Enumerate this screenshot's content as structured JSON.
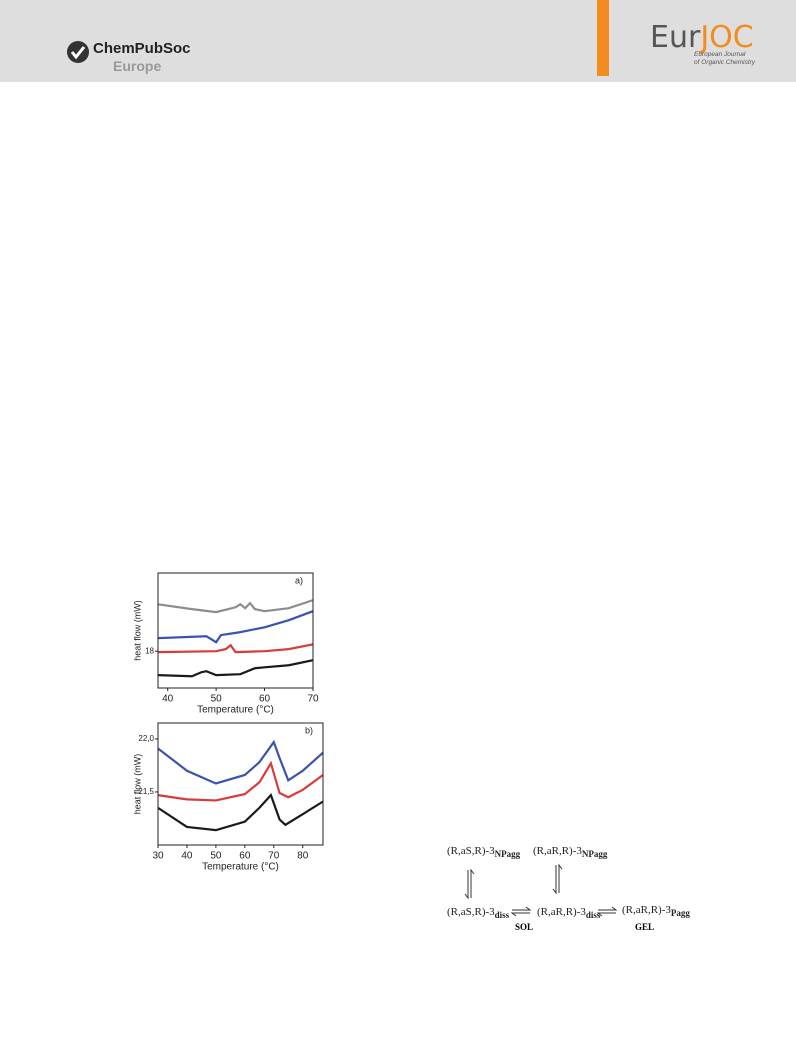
{
  "header": {
    "publisher": "ChemPubSoc",
    "region": "Europe",
    "journal_a": "Eur",
    "journal_b": "JOC",
    "journal_line1": "European Journal",
    "journal_line2": "of Organic Chemistry"
  },
  "chart_data": [
    {
      "type": "line",
      "panel": "a)",
      "xlabel": "Temperature (°C)",
      "ylabel": "heat flow (mW)",
      "xlim": [
        38,
        70
      ],
      "xticks": [
        40,
        50,
        60,
        70
      ],
      "ylim": [
        16.4,
        21.4
      ],
      "yticks": [
        18
      ],
      "series": [
        {
          "color": "#8c8c8c",
          "x": [
            38,
            45,
            50,
            54,
            55,
            56,
            57,
            58,
            60,
            65,
            70
          ],
          "values": [
            20.04,
            19.83,
            19.7,
            19.91,
            20.04,
            19.87,
            20.09,
            19.83,
            19.74,
            19.87,
            20.22
          ]
        },
        {
          "color": "#3a53b0",
          "x": [
            38,
            48,
            50,
            51,
            55,
            60,
            65,
            70
          ],
          "values": [
            18.57,
            18.65,
            18.39,
            18.7,
            18.83,
            19.04,
            19.35,
            19.74
          ]
        },
        {
          "color": "#d93a3a",
          "x": [
            38,
            50,
            52,
            53,
            54,
            60,
            65,
            70
          ],
          "values": [
            17.96,
            18.0,
            18.09,
            18.26,
            17.96,
            18.0,
            18.09,
            18.3
          ]
        },
        {
          "color": "#1a1a1a",
          "x": [
            38,
            45,
            47,
            48,
            50,
            55,
            58,
            60,
            65,
            70
          ],
          "values": [
            16.96,
            16.91,
            17.09,
            17.13,
            16.96,
            17.0,
            17.26,
            17.3,
            17.39,
            17.61
          ]
        }
      ]
    },
    {
      "type": "line",
      "panel": "b)",
      "xlabel": "Temperature (°C)",
      "ylabel": "heat flow (mW)",
      "xlim": [
        30,
        87
      ],
      "xticks": [
        30,
        40,
        50,
        60,
        70,
        80
      ],
      "ylim": [
        21.0,
        22.15
      ],
      "yticks": [
        {
          "value": 21.5,
          "label": "21,5"
        },
        {
          "value": 22.0,
          "label": "22,0"
        }
      ],
      "series": [
        {
          "color": "#3a53b0",
          "x": [
            30,
            40,
            50,
            60,
            65,
            70,
            72,
            75,
            80,
            87
          ],
          "values": [
            21.91,
            21.7,
            21.58,
            21.66,
            21.78,
            21.97,
            21.82,
            21.61,
            21.7,
            21.87
          ]
        },
        {
          "color": "#d93a3a",
          "x": [
            30,
            40,
            50,
            60,
            65,
            69,
            72,
            75,
            80,
            87
          ],
          "values": [
            21.47,
            21.43,
            21.42,
            21.48,
            21.59,
            21.77,
            21.49,
            21.45,
            21.52,
            21.66
          ]
        },
        {
          "color": "#1a1a1a",
          "x": [
            30,
            40,
            50,
            60,
            65,
            69,
            72,
            74,
            80,
            87
          ],
          "values": [
            21.35,
            21.17,
            21.14,
            21.22,
            21.35,
            21.47,
            21.24,
            21.19,
            21.29,
            21.41
          ]
        }
      ]
    }
  ],
  "scheme": {
    "np_aS": {
      "main": "(R,aS,R)-3",
      "sub": "NPagg"
    },
    "np_aR": {
      "main": "(R,aR,R)-3",
      "sub": "NPagg"
    },
    "diss_aS": {
      "main": "(R,aS,R)-3",
      "sub": "diss"
    },
    "diss_aR": {
      "main": "(R,aR,R)-3",
      "sub": "diss"
    },
    "p_aR": {
      "main": "(R,aR,R)-3",
      "sub": "Pagg"
    },
    "sol": "SOL",
    "gel": "GEL"
  }
}
